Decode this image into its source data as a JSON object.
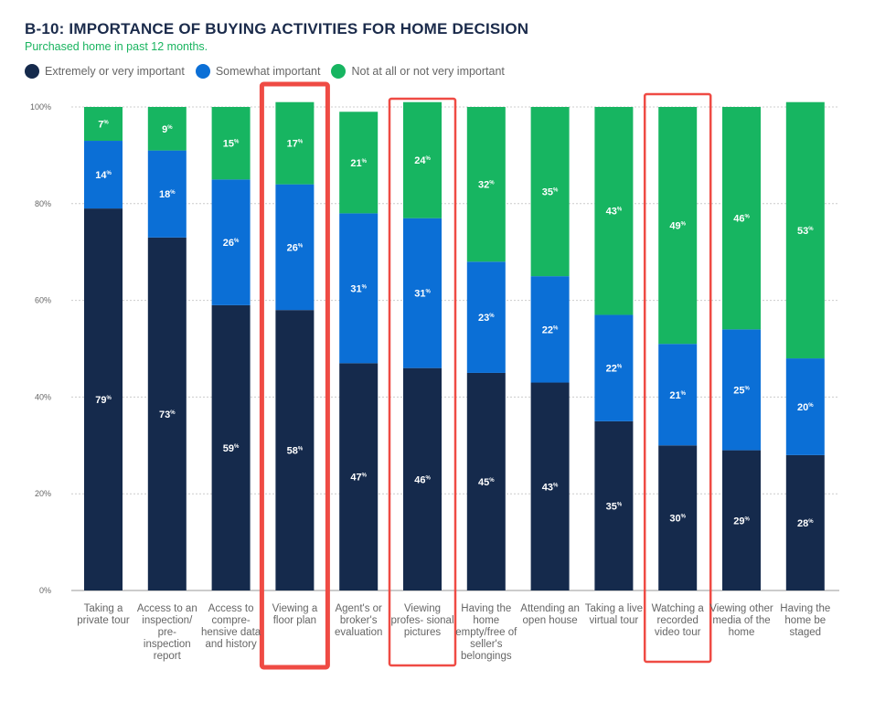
{
  "chart_data": {
    "type": "bar",
    "stacked": true,
    "title": "B-10: IMPORTANCE OF BUYING ACTIVITIES FOR HOME DECISION",
    "subtitle": "Purchased home in past 12 months.",
    "ylim": [
      0,
      100
    ],
    "yticks": [
      "0%",
      "20%",
      "40%",
      "60%",
      "80%",
      "100%"
    ],
    "grid": true,
    "legend_position": "top-left",
    "categories": [
      "Taking a private tour",
      "Access to an inspection/ pre-inspection report",
      "Access to compre- hensive data and history",
      "Viewing a floor plan",
      "Agent's or broker's evaluation",
      "Viewing profes- sional pictures",
      "Having the home empty/free of seller's belongings",
      "Attending an open house",
      "Taking a live virtual tour",
      "Watching a recorded video tour",
      "Viewing other media of the home",
      "Having the home be staged"
    ],
    "series": [
      {
        "name": "Extremely or very important",
        "color": "#152a4c",
        "values": [
          79,
          73,
          59,
          58,
          47,
          46,
          45,
          43,
          35,
          30,
          29,
          28
        ]
      },
      {
        "name": "Somewhat important",
        "color": "#0b6fd6",
        "values": [
          14,
          18,
          26,
          26,
          31,
          31,
          23,
          22,
          22,
          21,
          25,
          20
        ]
      },
      {
        "name": "Not at all or not very important",
        "color": "#17b561",
        "values": [
          7,
          9,
          15,
          17,
          21,
          24,
          32,
          35,
          43,
          49,
          46,
          53
        ]
      }
    ],
    "highlighted_categories": [
      3,
      5,
      9
    ],
    "highlight_color": "#ef4b44"
  }
}
